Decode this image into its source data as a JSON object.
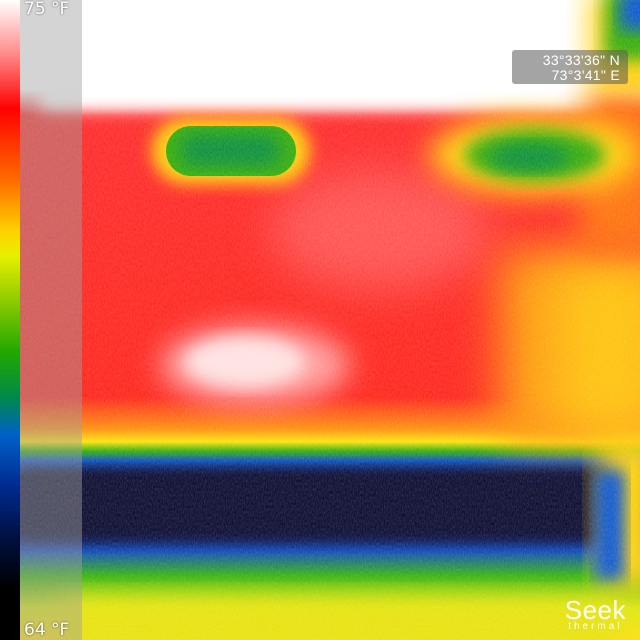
{
  "scale": {
    "max_label": "75 °F",
    "min_label": "64 °F"
  },
  "gps": {
    "latitude": "33°33'36\" N",
    "longitude": "73°3'41\" E"
  },
  "brand": {
    "name": "Seek",
    "subtitle": "thermal"
  },
  "palette": {
    "hot": "#ffffff",
    "warm": "#ff0000",
    "mid": "#ffd000",
    "cool": "#22a800",
    "cold": "#001040"
  },
  "icons": [
    "seek-thermal-logo-icon"
  ]
}
